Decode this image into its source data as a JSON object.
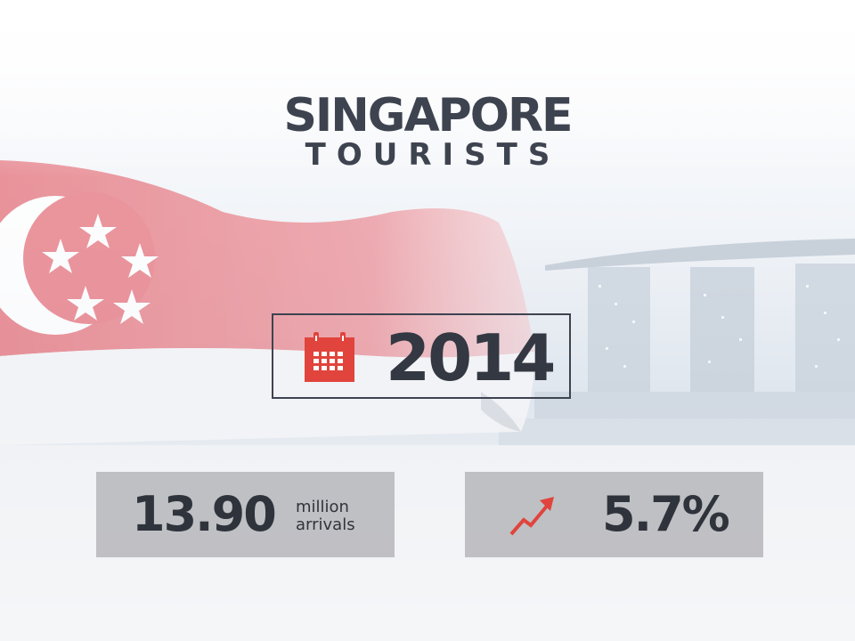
{
  "title": {
    "main": "SINGAPORE",
    "sub": "TOURISTS"
  },
  "year": {
    "icon": "calendar-icon",
    "value": "2014"
  },
  "arrivals": {
    "value": "13.90",
    "unit_line1": "million",
    "unit_line2": "arrivals"
  },
  "growth": {
    "icon": "trend-up-icon",
    "value": "5.7%"
  },
  "colors": {
    "text_dark": "#3e4350",
    "accent_red": "#e0443c",
    "flag_red": "#e87f88",
    "stat_box": "#96969b"
  }
}
